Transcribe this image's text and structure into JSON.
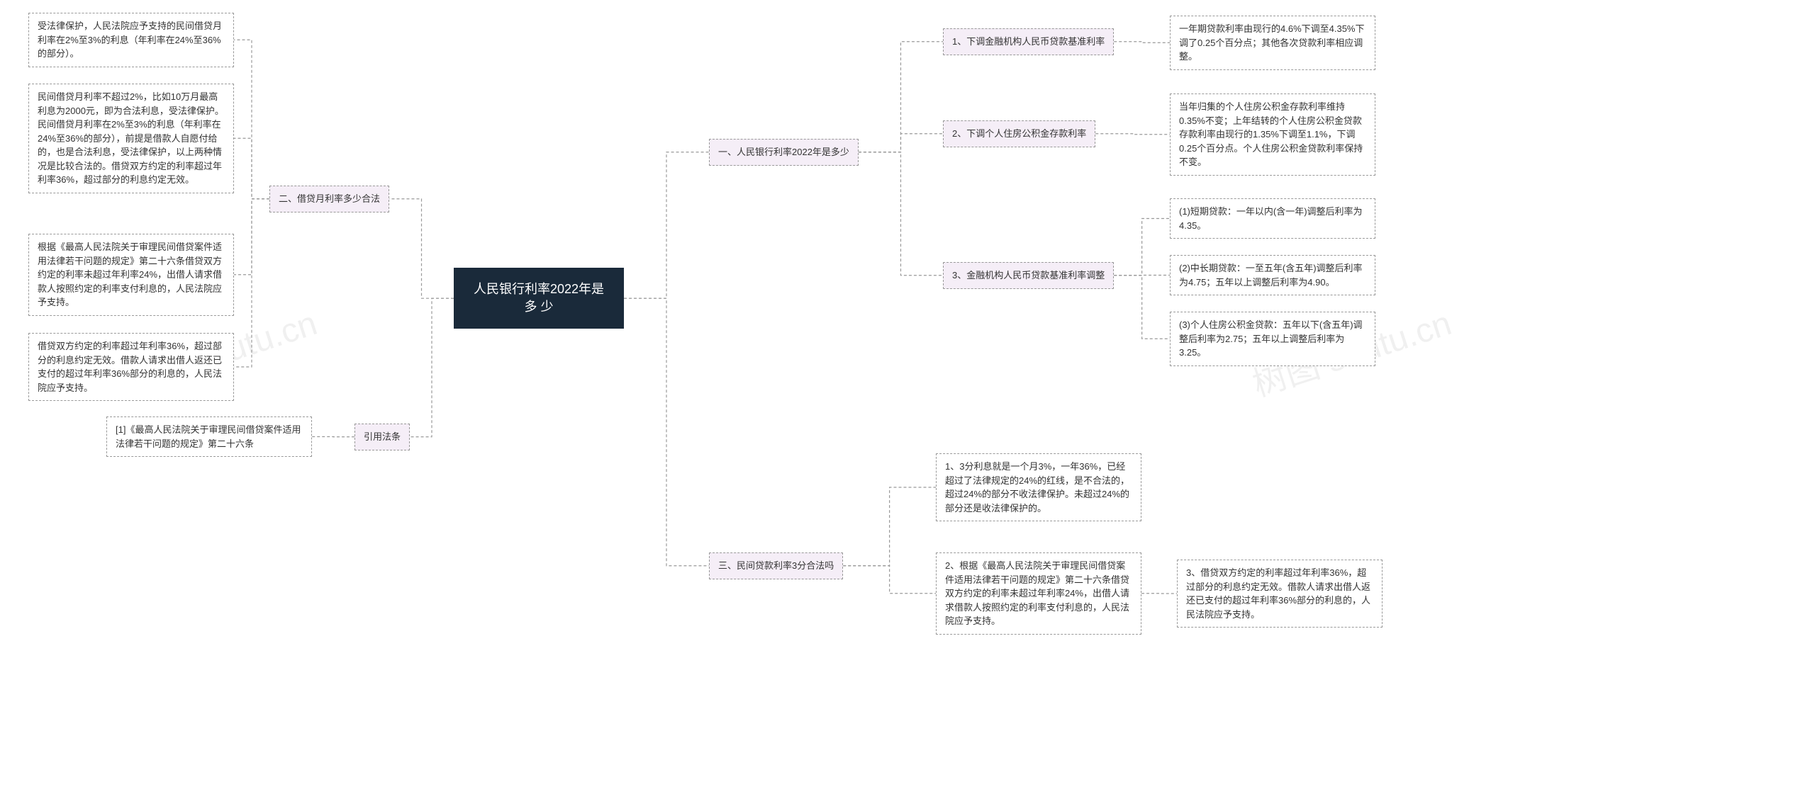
{
  "root": {
    "title": "人民银行利率2022年是多\n少"
  },
  "colors": {
    "root_bg": "#1a2a3a",
    "root_text": "#ffffff",
    "branch_bg": "#f5eef7",
    "leaf_bg": "#ffffff",
    "border": "#999999",
    "connector": "#999999",
    "text": "#333333",
    "watermark": "rgba(0,0,0,0.06)"
  },
  "watermarks": [
    "树图 shutu.cn",
    "树图 shutu.cn"
  ],
  "right": {
    "b1": {
      "label": "一、人民银行利率2022年是多少",
      "c1": {
        "label": "1、下调金融机构人民币贷款基准利率",
        "leaf": "一年期贷款利率由现行的4.6%下调至4.35%下调了0.25个百分点；其他各次贷款利率相应调整。"
      },
      "c2": {
        "label": "2、下调个人住房公积金存款利率",
        "leaf": "当年归集的个人住房公积金存款利率维持0.35%不变；上年结转的个人住房公积金贷款存款利率由现行的1.35%下调至1.1%，下调0.25个百分点。个人住房公积金贷款利率保持不变。"
      },
      "c3": {
        "label": "3、金融机构人民币贷款基准利率调整",
        "leaf1": "(1)短期贷款：一年以内(含一年)调整后利率为4.35。",
        "leaf2": "(2)中长期贷款：一至五年(含五年)调整后利率为4.75；五年以上调整后利率为4.90。",
        "leaf3": "(3)个人住房公积金贷款：五年以下(含五年)调整后利率为2.75；五年以上调整后利率为3.25。"
      }
    },
    "b3": {
      "label": "三、民间贷款利率3分合法吗",
      "leaf1": "1、3分利息就是一个月3%，一年36%，已经超过了法律规定的24%的红线，是不合法的，超过24%的部分不收法律保护。未超过24%的部分还是收法律保护的。",
      "leaf2": "2、根据《最高人民法院关于审理民间借贷案件适用法律若干问题的规定》第二十六条借贷双方约定的利率未超过年利率24%，出借人请求借款人按照约定的利率支付利息的，人民法院应予支持。",
      "leaf3": "3、借贷双方约定的利率超过年利率36%，超过部分的利息约定无效。借款人请求出借人返还已支付的超过年利率36%部分的利息的，人民法院应予支持。"
    }
  },
  "left": {
    "b2": {
      "label": "二、借贷月利率多少合法",
      "leaf1": "受法律保护，人民法院应予支持的民间借贷月利率在2%至3%的利息（年利率在24%至36%的部分）。",
      "leaf2": "民间借贷月利率不超过2%，比如10万月最高利息为2000元，即为合法利息，受法律保护。民间借贷月利率在2%至3%的利息（年利率在24%至36%的部分），前提是借款人自愿付给的，也是合法利息，受法律保护，以上两种情况是比较合法的。借贷双方约定的利率超过年利率36%，超过部分的利息约定无效。",
      "leaf3": "根据《最高人民法院关于审理民间借贷案件适用法律若干问题的规定》第二十六条借贷双方约定的利率未超过年利率24%，出借人请求借款人按照约定的利率支付利息的，人民法院应予支持。",
      "leaf4": "借贷双方约定的利率超过年利率36%，超过部分的利息约定无效。借款人请求出借人返还已支付的超过年利率36%部分的利息的，人民法院应予支持。"
    },
    "cite": {
      "label": "引用法条",
      "leaf": "[1]《最高人民法院关于审理民间借贷案件适用法律若干问题的规定》第二十六条"
    }
  }
}
